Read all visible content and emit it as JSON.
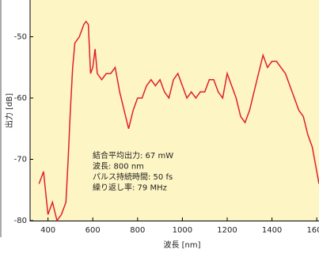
{
  "chart_data": {
    "type": "line",
    "x_label": "波長 [nm]",
    "y_label": "出力 [dB]",
    "annotations": [
      "結合平均出力: 67 mW",
      "波長: 800 nm",
      "パルス持続時間: 50 fs",
      "繰り返し率: 79 MHz"
    ],
    "x": [
      360,
      380,
      400,
      420,
      440,
      460,
      480,
      490,
      500,
      510,
      520,
      540,
      560,
      570,
      580,
      590,
      600,
      610,
      620,
      640,
      660,
      680,
      700,
      720,
      740,
      760,
      780,
      800,
      820,
      840,
      860,
      880,
      900,
      920,
      940,
      960,
      980,
      1000,
      1020,
      1040,
      1060,
      1080,
      1100,
      1120,
      1140,
      1160,
      1180,
      1200,
      1220,
      1240,
      1260,
      1280,
      1300,
      1320,
      1340,
      1360,
      1380,
      1400,
      1420,
      1440,
      1460,
      1480,
      1500,
      1520,
      1540,
      1560,
      1580,
      1600,
      1610
    ],
    "series": [
      {
        "color": "#e0202a",
        "values": [
          -74,
          -72,
          -79,
          -77,
          -80,
          -79,
          -77,
          -70,
          -62,
          -55,
          -51,
          -50,
          -48,
          -47.5,
          -48,
          -56,
          -55,
          -52,
          -56,
          -57,
          -56,
          -56,
          -55,
          -59,
          -62,
          -65,
          -62,
          -60,
          -60,
          -58,
          -57,
          -58,
          -57,
          -59,
          -60,
          -57,
          -56,
          -58,
          -60,
          -59,
          -60,
          -59,
          -59,
          -57,
          -57,
          -59,
          -60,
          -56,
          -58,
          -60,
          -63,
          -64,
          -62,
          -59,
          -56,
          -53,
          -55,
          -54,
          -54,
          -55,
          -56,
          -58,
          -60,
          -62,
          -63,
          -66,
          -68,
          -72,
          -74
        ]
      }
    ],
    "xlim": [
      320,
      1610
    ],
    "ylim": [
      -80,
      -44
    ],
    "xticks": [
      400,
      600,
      800,
      1000,
      1200,
      1400,
      1600
    ],
    "yticks": [
      -80,
      -70,
      -60,
      -50
    ],
    "background": "#fdf5c4"
  }
}
